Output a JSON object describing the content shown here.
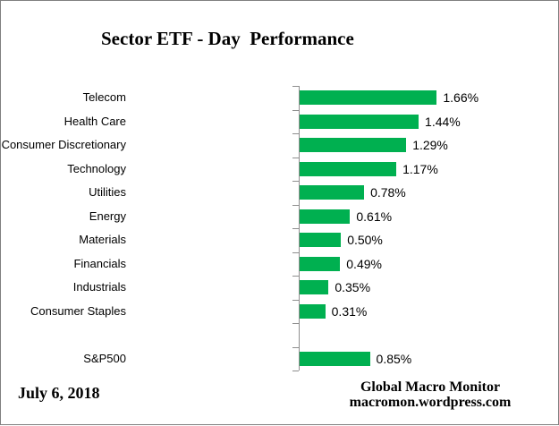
{
  "title": "Sector ETF - Day  Performance",
  "date_label": "July 6, 2018",
  "footer": {
    "line1": "Global Macro Monitor",
    "line2": "macromon.wordpress.com"
  },
  "colors": {
    "bar": "#00B050",
    "axis": "#8e8e8e",
    "border": "#7f7f7f",
    "text": "#000000",
    "background": "#ffffff"
  },
  "chart_data": {
    "type": "bar",
    "orientation": "horizontal",
    "title": "Sector ETF - Day  Performance",
    "xlabel": "",
    "ylabel": "",
    "grid": false,
    "legend": false,
    "value_axis_visible": false,
    "xlim": [
      0,
      3.15
    ],
    "categories": [
      "Telecom",
      "Health Care",
      "Consumer Discretionary",
      "Technology",
      "Utilities",
      "Energy",
      "Materials",
      "Financials",
      "Industrials",
      "Consumer Staples",
      "",
      "S&P500"
    ],
    "values": [
      1.66,
      1.44,
      1.29,
      1.17,
      0.78,
      0.61,
      0.5,
      0.49,
      0.35,
      0.31,
      null,
      0.85
    ],
    "value_labels": [
      "1.66%",
      "1.44%",
      "1.29%",
      "1.17%",
      "0.78%",
      "0.61%",
      "0.50%",
      "0.49%",
      "0.35%",
      "0.31%",
      "",
      "0.85%"
    ]
  }
}
